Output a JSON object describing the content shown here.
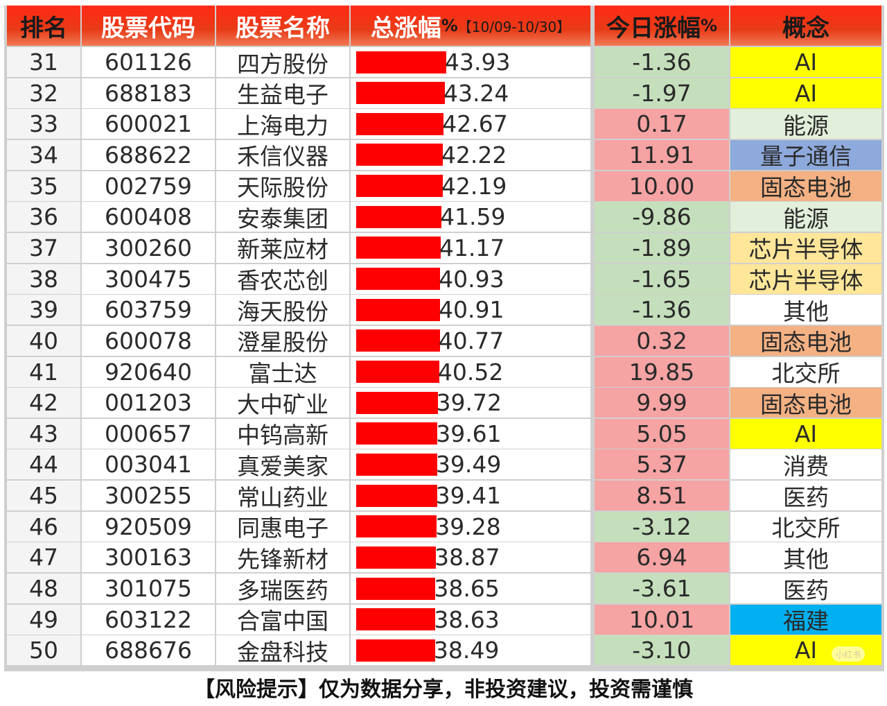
{
  "headers": {
    "rank": "排名",
    "code": "股票代码",
    "name": "股票名称",
    "total_gain": "总涨幅",
    "total_gain_pct": "%",
    "date_range": "【10/09-10/30】",
    "today_gain": "今日涨幅",
    "today_gain_pct": "%",
    "concept": "概念"
  },
  "colors": {
    "header_red": "#e83b17",
    "bar_red": "#ff0000",
    "today_up": "#f6a3a3",
    "today_down": "#c5dfbc",
    "concept_AI": "#ffff00",
    "concept_energy": "#e2efda",
    "concept_quantum": "#8ea9db",
    "concept_battery": "#f4b183",
    "concept_chip": "#ffe699",
    "concept_fujian": "#00b0f0",
    "concept_plain": "#ffffff"
  },
  "bar_scale_max": 43.93,
  "rows": [
    {
      "rank": "31",
      "code": "601126",
      "name": "四方股份",
      "total": "43.93",
      "today": "-1.36",
      "concept": "AI"
    },
    {
      "rank": "32",
      "code": "688183",
      "name": "生益电子",
      "total": "43.24",
      "today": "-1.97",
      "concept": "AI"
    },
    {
      "rank": "33",
      "code": "600021",
      "name": "上海电力",
      "total": "42.67",
      "today": "0.17",
      "concept": "能源"
    },
    {
      "rank": "34",
      "code": "688622",
      "name": "禾信仪器",
      "total": "42.22",
      "today": "11.91",
      "concept": "量子通信"
    },
    {
      "rank": "35",
      "code": "002759",
      "name": "天际股份",
      "total": "42.19",
      "today": "10.00",
      "concept": "固态电池"
    },
    {
      "rank": "36",
      "code": "600408",
      "name": "安泰集团",
      "total": "41.59",
      "today": "-9.86",
      "concept": "能源"
    },
    {
      "rank": "37",
      "code": "300260",
      "name": "新莱应材",
      "total": "41.17",
      "today": "-1.89",
      "concept": "芯片半导体"
    },
    {
      "rank": "38",
      "code": "300475",
      "name": "香农芯创",
      "total": "40.93",
      "today": "-1.65",
      "concept": "芯片半导体"
    },
    {
      "rank": "39",
      "code": "603759",
      "name": "海天股份",
      "total": "40.91",
      "today": "-1.36",
      "concept": "其他"
    },
    {
      "rank": "40",
      "code": "600078",
      "name": "澄星股份",
      "total": "40.77",
      "today": "0.32",
      "concept": "固态电池"
    },
    {
      "rank": "41",
      "code": "920640",
      "name": "富士达",
      "total": "40.52",
      "today": "19.85",
      "concept": "北交所"
    },
    {
      "rank": "42",
      "code": "001203",
      "name": "大中矿业",
      "total": "39.72",
      "today": "9.99",
      "concept": "固态电池"
    },
    {
      "rank": "43",
      "code": "000657",
      "name": "中钨高新",
      "total": "39.61",
      "today": "5.05",
      "concept": "AI"
    },
    {
      "rank": "44",
      "code": "003041",
      "name": "真爱美家",
      "total": "39.49",
      "today": "5.37",
      "concept": "消费"
    },
    {
      "rank": "45",
      "code": "300255",
      "name": "常山药业",
      "total": "39.41",
      "today": "8.51",
      "concept": "医药"
    },
    {
      "rank": "46",
      "code": "920509",
      "name": "同惠电子",
      "total": "39.28",
      "today": "-3.12",
      "concept": "北交所"
    },
    {
      "rank": "47",
      "code": "300163",
      "name": "先锋新材",
      "total": "38.87",
      "today": "6.94",
      "concept": "其他"
    },
    {
      "rank": "48",
      "code": "301075",
      "name": "多瑞医药",
      "total": "38.65",
      "today": "-3.61",
      "concept": "医药"
    },
    {
      "rank": "49",
      "code": "603122",
      "name": "合富中国",
      "total": "38.63",
      "today": "10.01",
      "concept": "福建"
    },
    {
      "rank": "50",
      "code": "688676",
      "name": "金盘科技",
      "total": "38.49",
      "today": "-3.10",
      "concept": "AI"
    }
  ],
  "footer": "【风险提示】仅为数据分享，非投资建议，投资需谨慎",
  "watermark": "小红书"
}
